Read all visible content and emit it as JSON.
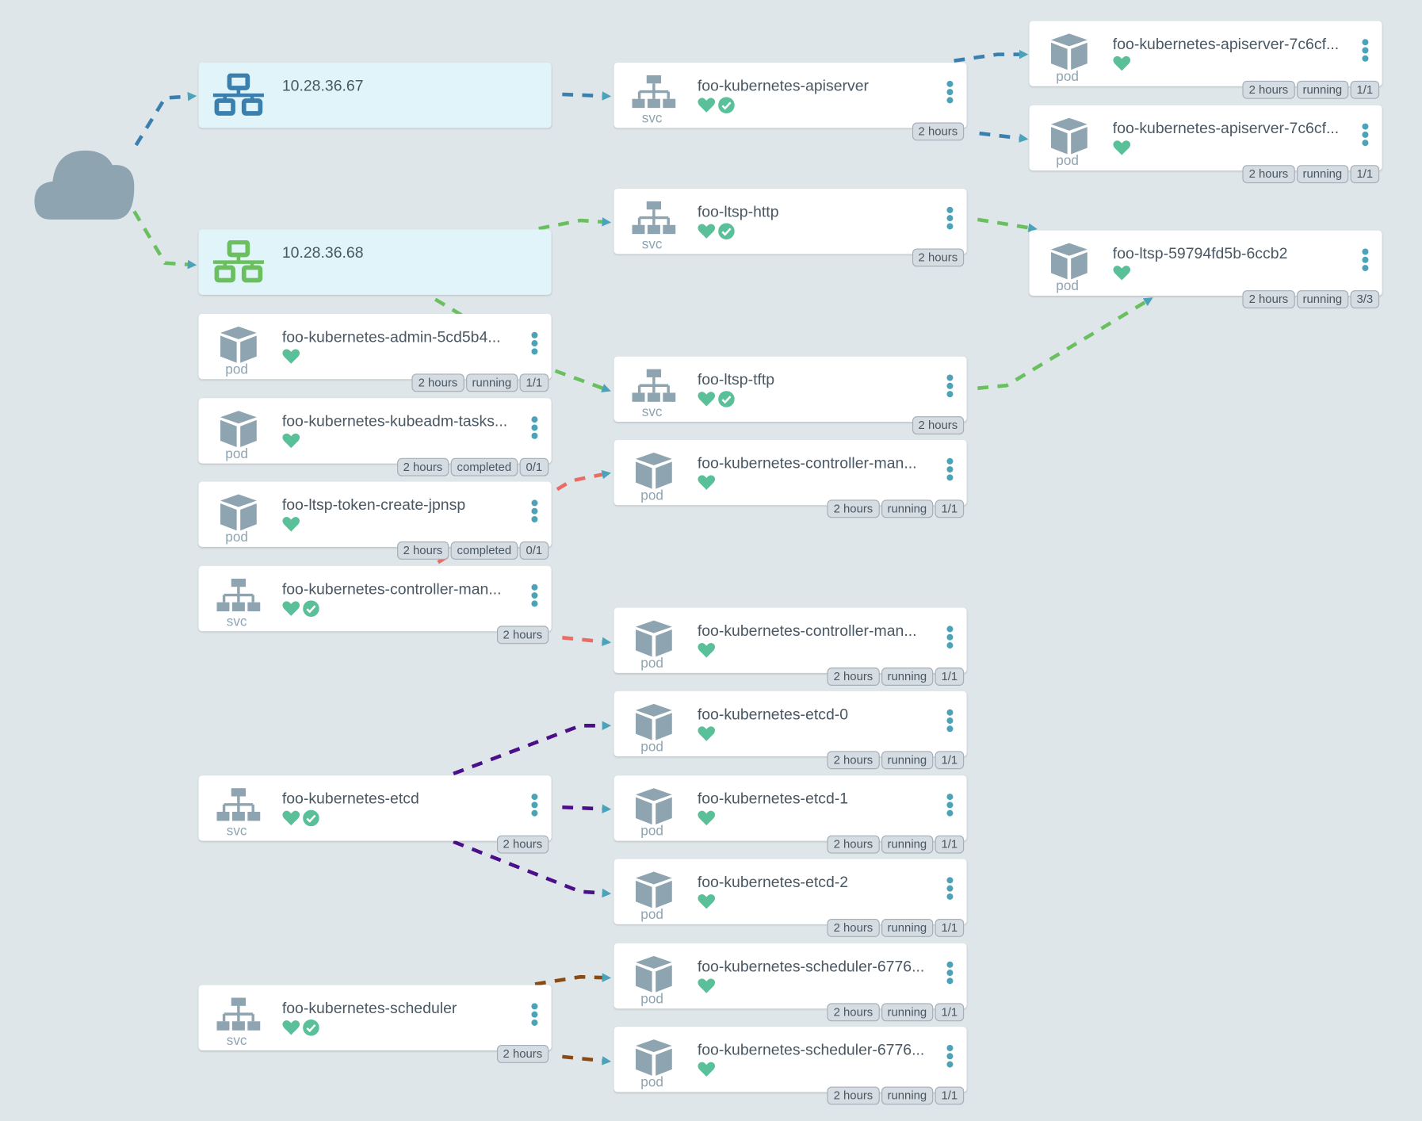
{
  "colors": {
    "ip_blue": "#3a7fae",
    "ip_green": "#6abf5e",
    "healthy": "#5ac09a",
    "edge_blue": "#3a7fae",
    "edge_green": "#6abf5e",
    "edge_red": "#e96d65",
    "edge_purple": "#4b0f8a",
    "edge_brown": "#8b4a12",
    "arrow": "#4aa3b8"
  },
  "internet": {
    "icon": "cloud-icon"
  },
  "nodes": [
    {
      "id": "ip1",
      "kind": "",
      "title": "10.28.36.67",
      "icon": "network-icon",
      "ip_color": "#3a7fae",
      "badges": []
    },
    {
      "id": "ip2",
      "kind": "",
      "title": "10.28.36.68",
      "icon": "network-icon",
      "ip_color": "#6abf5e",
      "badges": []
    },
    {
      "id": "svc-apiserver",
      "kind": "svc",
      "title": "foo-kubernetes-apiserver",
      "healthy": true,
      "synced": true,
      "badges": [
        "2 hours"
      ]
    },
    {
      "id": "pod-apiserver-1",
      "kind": "pod",
      "title": "foo-kubernetes-apiserver-7c6cf...",
      "healthy": true,
      "badges": [
        "2 hours",
        "running",
        "1/1"
      ]
    },
    {
      "id": "pod-apiserver-2",
      "kind": "pod",
      "title": "foo-kubernetes-apiserver-7c6cf...",
      "healthy": true,
      "badges": [
        "2 hours",
        "running",
        "1/1"
      ]
    },
    {
      "id": "svc-ltsp-http",
      "kind": "svc",
      "title": "foo-ltsp-http",
      "healthy": true,
      "synced": true,
      "badges": [
        "2 hours"
      ]
    },
    {
      "id": "pod-ltsp",
      "kind": "pod",
      "title": "foo-ltsp-59794fd5b-6ccb2",
      "healthy": true,
      "badges": [
        "2 hours",
        "running",
        "3/3"
      ]
    },
    {
      "id": "pod-admin",
      "kind": "pod",
      "title": "foo-kubernetes-admin-5cd5b4...",
      "healthy": true,
      "badges": [
        "2 hours",
        "running",
        "1/1"
      ]
    },
    {
      "id": "pod-kubeadm",
      "kind": "pod",
      "title": "foo-kubernetes-kubeadm-tasks...",
      "healthy": true,
      "badges": [
        "2 hours",
        "completed",
        "0/1"
      ]
    },
    {
      "id": "pod-token",
      "kind": "pod",
      "title": "foo-ltsp-token-create-jpnsp",
      "healthy": true,
      "badges": [
        "2 hours",
        "completed",
        "0/1"
      ]
    },
    {
      "id": "svc-controller",
      "kind": "svc",
      "title": "foo-kubernetes-controller-man...",
      "healthy": true,
      "synced": true,
      "badges": [
        "2 hours"
      ]
    },
    {
      "id": "svc-ltsp-tftp",
      "kind": "svc",
      "title": "foo-ltsp-tftp",
      "healthy": true,
      "synced": true,
      "badges": [
        "2 hours"
      ]
    },
    {
      "id": "pod-controller-1",
      "kind": "pod",
      "title": "foo-kubernetes-controller-man...",
      "healthy": true,
      "badges": [
        "2 hours",
        "running",
        "1/1"
      ]
    },
    {
      "id": "pod-controller-2",
      "kind": "pod",
      "title": "foo-kubernetes-controller-man...",
      "healthy": true,
      "badges": [
        "2 hours",
        "running",
        "1/1"
      ]
    },
    {
      "id": "pod-etcd-0",
      "kind": "pod",
      "title": "foo-kubernetes-etcd-0",
      "healthy": true,
      "badges": [
        "2 hours",
        "running",
        "1/1"
      ]
    },
    {
      "id": "svc-etcd",
      "kind": "svc",
      "title": "foo-kubernetes-etcd",
      "healthy": true,
      "synced": true,
      "badges": [
        "2 hours"
      ]
    },
    {
      "id": "pod-etcd-1",
      "kind": "pod",
      "title": "foo-kubernetes-etcd-1",
      "healthy": true,
      "badges": [
        "2 hours",
        "running",
        "1/1"
      ]
    },
    {
      "id": "pod-etcd-2",
      "kind": "pod",
      "title": "foo-kubernetes-etcd-2",
      "healthy": true,
      "badges": [
        "2 hours",
        "running",
        "1/1"
      ]
    },
    {
      "id": "pod-scheduler-1",
      "kind": "pod",
      "title": "foo-kubernetes-scheduler-6776...",
      "healthy": true,
      "badges": [
        "2 hours",
        "running",
        "1/1"
      ]
    },
    {
      "id": "svc-scheduler",
      "kind": "svc",
      "title": "foo-kubernetes-scheduler",
      "healthy": true,
      "synced": true,
      "badges": [
        "2 hours"
      ]
    },
    {
      "id": "pod-scheduler-2",
      "kind": "pod",
      "title": "foo-kubernetes-scheduler-6776...",
      "healthy": true,
      "badges": [
        "2 hours",
        "running",
        "1/1"
      ]
    }
  ]
}
